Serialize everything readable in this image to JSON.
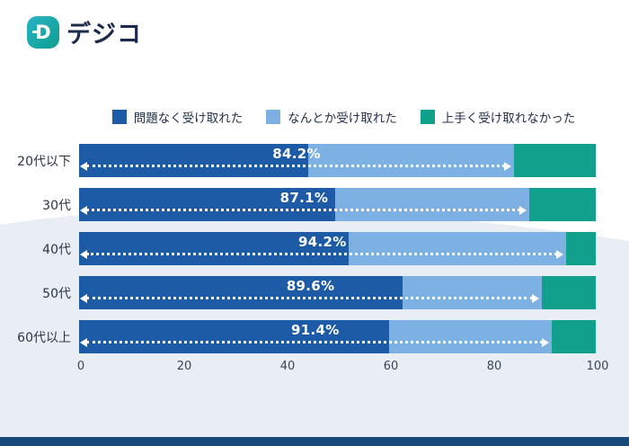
{
  "logo": {
    "brand": "デジコ",
    "icon": "digico-logo-icon",
    "icon_letter": "D"
  },
  "legend": [
    {
      "label": "問題なく受け取れた",
      "color": "#1e5ba7"
    },
    {
      "label": "なんとか受け取れた",
      "color": "#7db1e3"
    },
    {
      "label": "上手く受け取れなかった",
      "color": "#10a08c"
    }
  ],
  "chart_data": {
    "type": "bar",
    "orientation": "horizontal",
    "stacked": true,
    "title": "",
    "categories": [
      "20代以下",
      "30代",
      "40代",
      "50代",
      "60代以上"
    ],
    "series": [
      {
        "name": "問題なく受け取れた",
        "color": "#1e5ba7",
        "values": [
          44.3,
          49.6,
          52.2,
          62.6,
          60.0
        ]
      },
      {
        "name": "なんとか受け取れた",
        "color": "#7db1e3",
        "values": [
          39.9,
          37.5,
          42.0,
          27.0,
          31.4
        ]
      },
      {
        "name": "上手く受け取れなかった",
        "color": "#10a08c",
        "values": [
          15.8,
          12.9,
          5.8,
          10.4,
          8.6
        ]
      }
    ],
    "annotations": [
      {
        "category": "20代以下",
        "label": "84.2%",
        "span_end": 84.2
      },
      {
        "category": "30代",
        "label": "87.1%",
        "span_end": 87.1
      },
      {
        "category": "40代",
        "label": "94.2%",
        "span_end": 94.2
      },
      {
        "category": "50代",
        "label": "89.6%",
        "span_end": 89.6
      },
      {
        "category": "60代以上",
        "label": "91.4%",
        "span_end": 91.4
      }
    ],
    "x_ticks": [
      0,
      20,
      40,
      60,
      80,
      100
    ],
    "xlim": [
      0,
      100
    ],
    "grid": false,
    "legend_position": "top",
    "colors": {
      "background_wave": "#e8eef4",
      "footer_strip": "#17497b",
      "arrow": "#ffffff"
    }
  }
}
